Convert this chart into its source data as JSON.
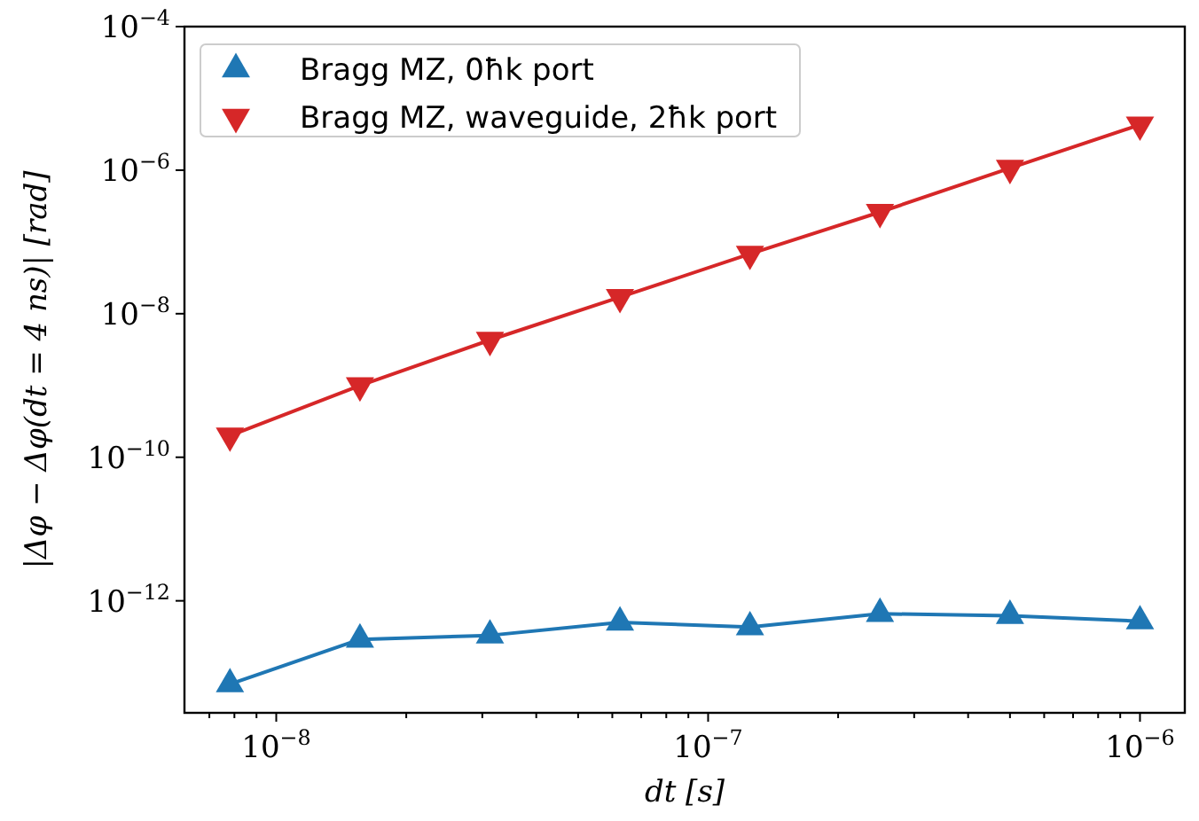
{
  "chart_data": {
    "type": "line",
    "xlabel": "dt [s]",
    "ylabel": "|Δφ − Δφ(dt = 4 ns)| [rad]",
    "log": "xy",
    "grid": false,
    "legend": "top left",
    "x": [
      7.8125e-09,
      1.5625e-08,
      3.125e-08,
      6.25e-08,
      1.25e-07,
      2.5e-07,
      5e-07,
      1e-06
    ],
    "xlim": [
      6.13e-09,
      1.27e-06
    ],
    "xticks": [
      {
        "value": 7e-09,
        "label": null
      },
      {
        "value": 8e-09,
        "label": null
      },
      {
        "value": 9e-09,
        "label": null
      },
      {
        "value": 1e-08,
        "label": "10$^{−8}$"
      },
      {
        "value": 2e-08,
        "label": null
      },
      {
        "value": 3e-08,
        "label": null
      },
      {
        "value": 4e-08,
        "label": null
      },
      {
        "value": 5e-08,
        "label": null
      },
      {
        "value": 6e-08,
        "label": null
      },
      {
        "value": 7e-08,
        "label": null
      },
      {
        "value": 8e-08,
        "label": null
      },
      {
        "value": 9e-08,
        "label": null
      },
      {
        "value": 1e-07,
        "label": "10$^{−7}$"
      },
      {
        "value": 2e-07,
        "label": null
      },
      {
        "value": 3e-07,
        "label": null
      },
      {
        "value": 4e-07,
        "label": null
      },
      {
        "value": 5e-07,
        "label": null
      },
      {
        "value": 6e-07,
        "label": null
      },
      {
        "value": 7e-07,
        "label": null
      },
      {
        "value": 8e-07,
        "label": null
      },
      {
        "value": 9e-07,
        "label": null
      },
      {
        "value": 1e-06,
        "label": "10$^{−6}$"
      }
    ],
    "ylim": [
      2.75e-14,
      0.0001
    ],
    "yticks": [
      {
        "value": 1e-12,
        "label": "10$^{−12}$"
      },
      {
        "value": 1e-10,
        "label": "10$^{−10}$"
      },
      {
        "value": 1e-08,
        "label": "10$^{−8}$"
      },
      {
        "value": 1e-06,
        "label": "10$^{−6}$"
      },
      {
        "value": 0.0001,
        "label": "10$^{−4}$"
      }
    ],
    "series": [
      {
        "name": "Bragg MZ, 0ħk port",
        "color": "#1f77b4",
        "marker": "triangle",
        "values": [
          6.9e-14,
          2.9e-13,
          3.3e-13,
          5e-13,
          4.3e-13,
          6.6e-13,
          6.2e-13,
          5.2e-13
        ]
      },
      {
        "name": "Bragg MZ, waveguide, 2ħk port",
        "color": "#d62728",
        "marker": "triangle-down",
        "values": [
          2e-10,
          1e-09,
          4.3e-09,
          1.7e-08,
          6.8e-08,
          2.6e-07,
          1.07e-06,
          4.3e-06
        ]
      }
    ]
  }
}
